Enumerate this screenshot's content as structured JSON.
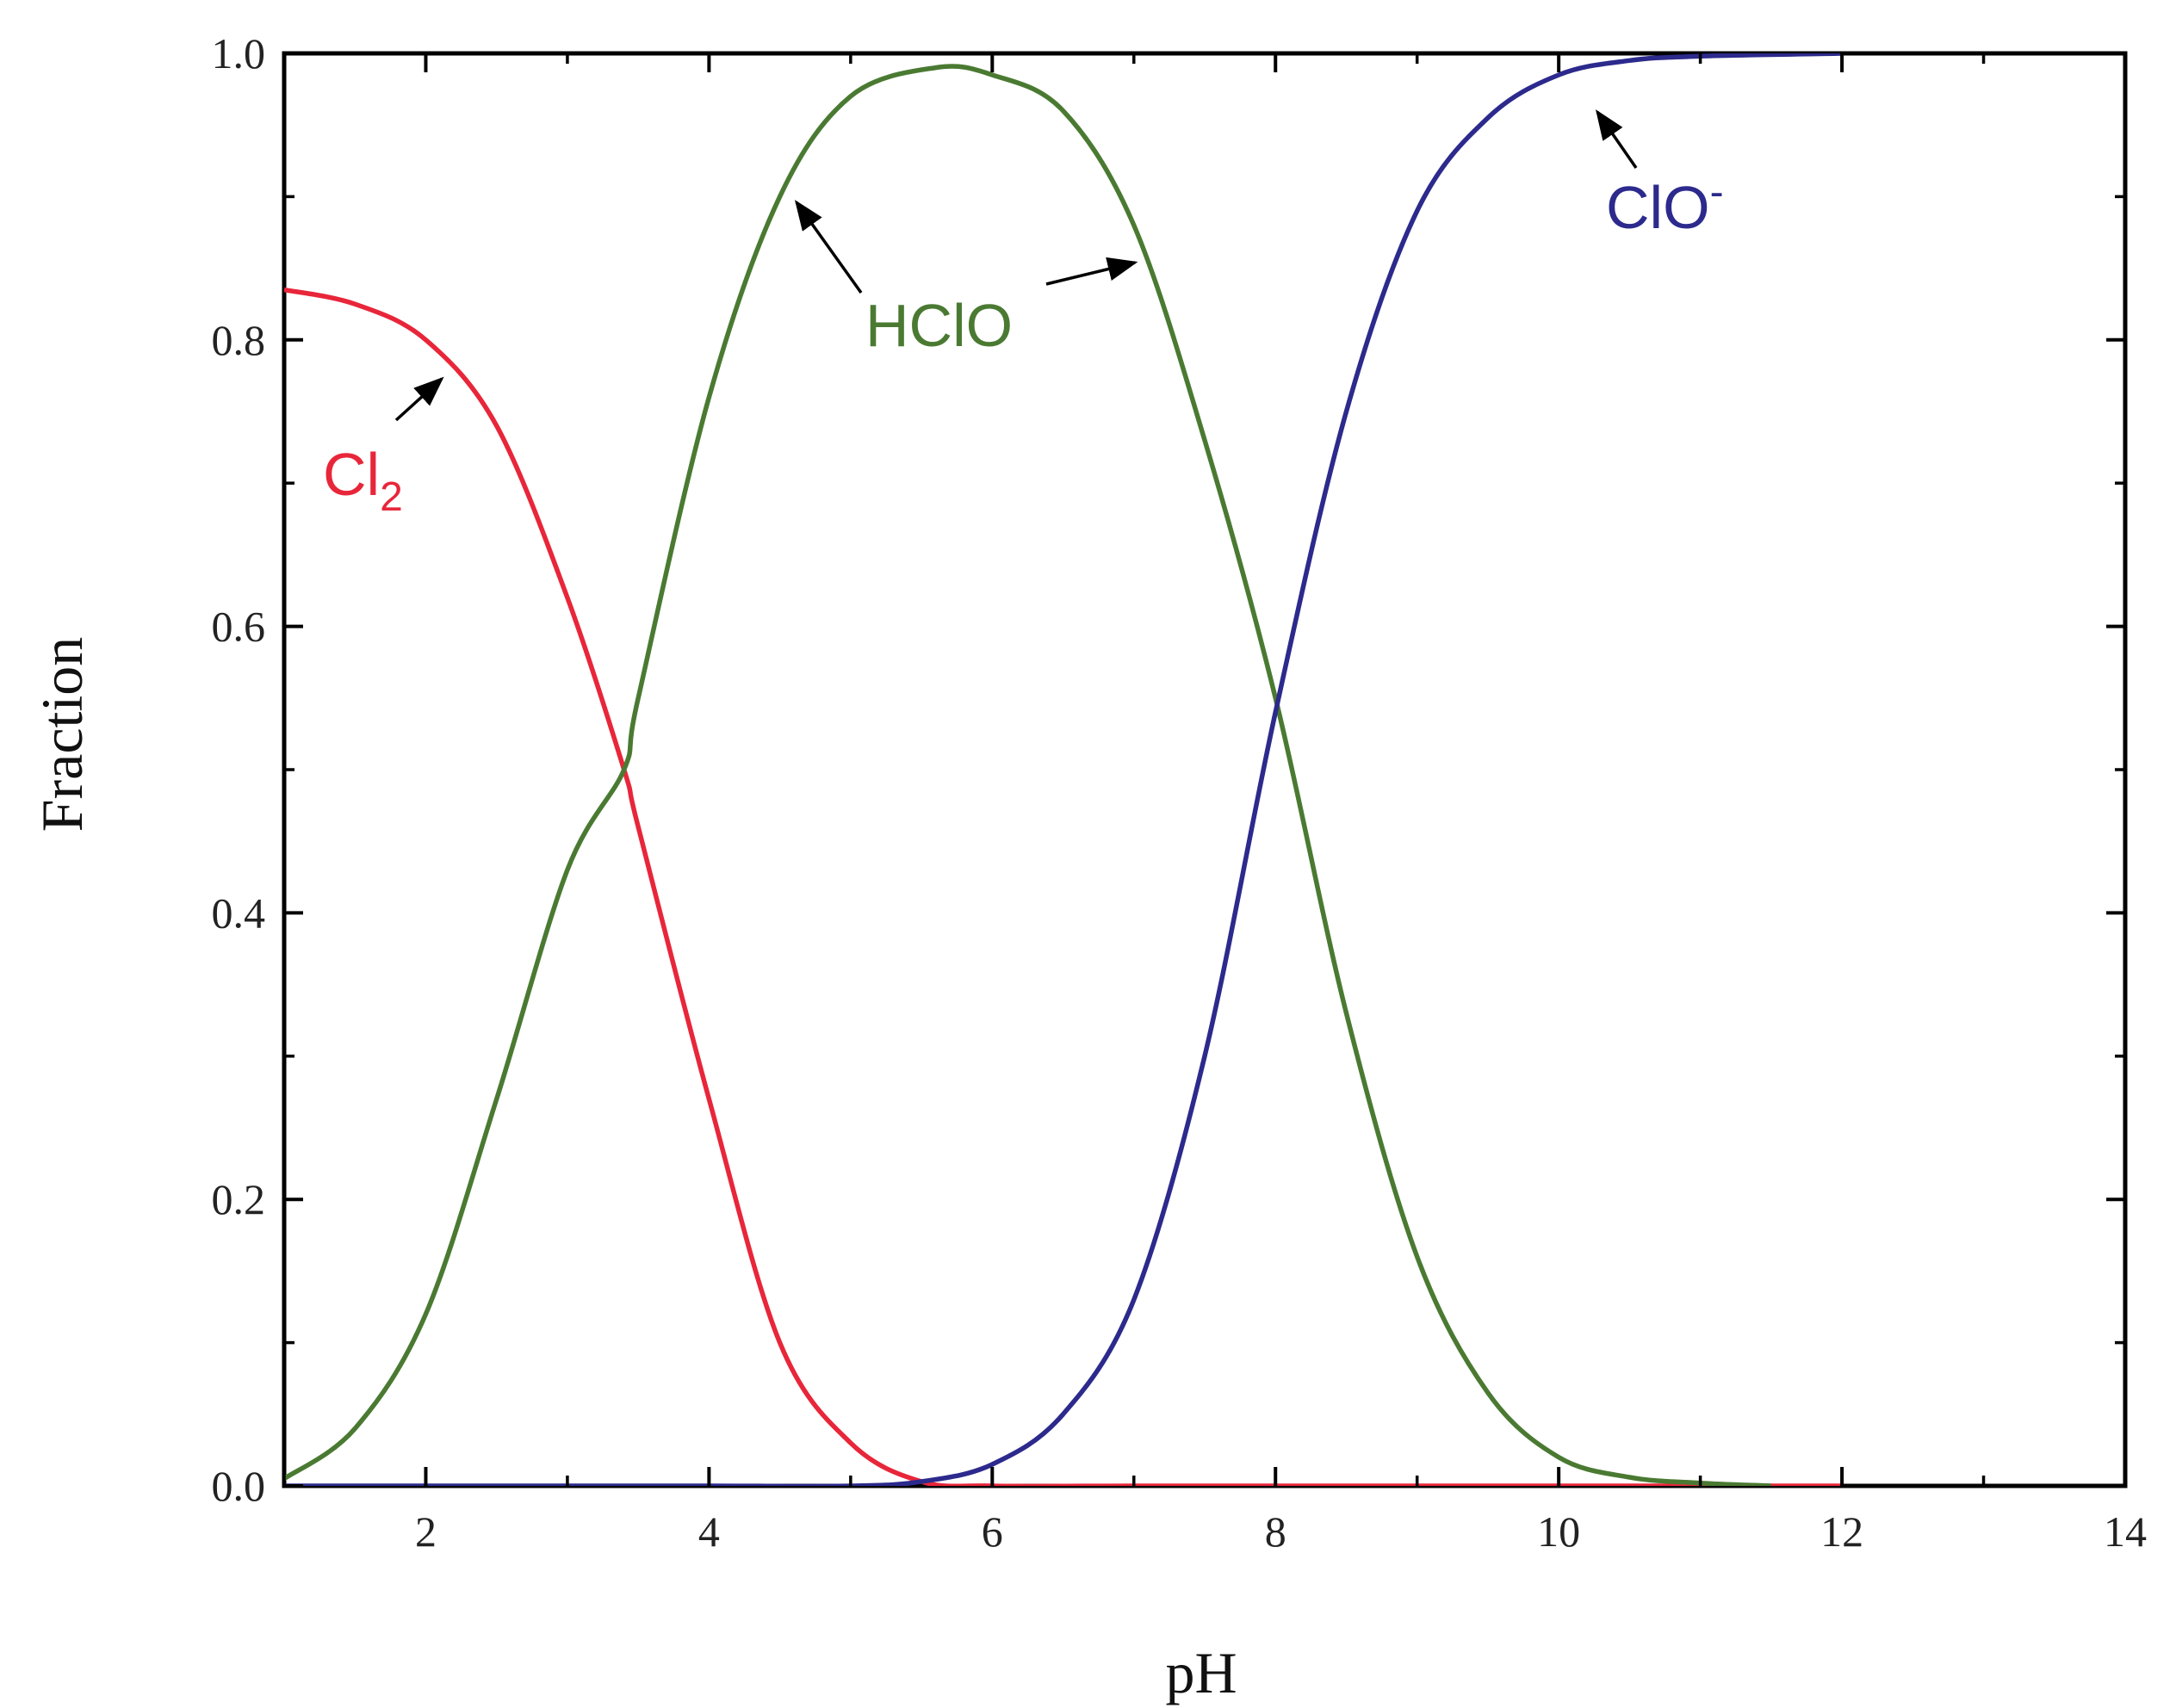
{
  "chart_data": {
    "type": "line",
    "title": "",
    "xlabel": "pH",
    "ylabel": "Fraction",
    "xlim": [
      1,
      14
    ],
    "ylim": [
      0,
      1.0
    ],
    "grid": false,
    "legend": "none",
    "x_ticks": [
      2,
      4,
      6,
      8,
      10,
      12,
      14
    ],
    "x_tick_labels": [
      "2",
      "4",
      "6",
      "8",
      "10",
      "12",
      "14"
    ],
    "y_ticks": [
      0.0,
      0.2,
      0.4,
      0.6,
      0.8,
      1.0
    ],
    "y_tick_labels": [
      "0.0",
      "0.2",
      "0.4",
      "0.6",
      "0.8",
      "1.0"
    ],
    "x_minor_step": 1,
    "y_minor_step": 0.1,
    "series": [
      {
        "name": "Cl2",
        "color": "#e8263a",
        "x": [
          1.0,
          1.5,
          2.0,
          2.5,
          3.0,
          3.4,
          3.5,
          4.0,
          4.5,
          5.0,
          5.5,
          6.0,
          7.0,
          8.0,
          9.0,
          10.0,
          11.0,
          12.0
        ],
        "y": [
          0.835,
          0.825,
          0.8,
          0.74,
          0.62,
          0.5,
          0.46,
          0.27,
          0.1,
          0.03,
          0.003,
          0.0,
          0.0,
          0.0,
          0.0,
          0.0,
          0.0,
          0.0
        ]
      },
      {
        "name": "HClO",
        "color": "#4a7a32",
        "x": [
          1.0,
          1.5,
          2.0,
          2.5,
          3.0,
          3.4,
          3.5,
          4.0,
          4.5,
          5.0,
          5.6,
          6.0,
          6.5,
          7.0,
          7.5,
          8.0,
          8.5,
          9.0,
          9.5,
          10.0,
          10.5,
          11.0,
          11.5
        ],
        "y": [
          0.005,
          0.04,
          0.12,
          0.27,
          0.43,
          0.5,
          0.55,
          0.76,
          0.9,
          0.97,
          0.99,
          0.985,
          0.96,
          0.88,
          0.73,
          0.55,
          0.33,
          0.16,
          0.065,
          0.02,
          0.006,
          0.002,
          0.0
        ]
      },
      {
        "name": "ClO-",
        "color": "#2c2a8c",
        "x": [
          1.0,
          2.0,
          3.0,
          4.0,
          5.0,
          5.5,
          6.0,
          6.5,
          7.0,
          7.5,
          8.0,
          8.5,
          9.0,
          9.5,
          10.0,
          10.5,
          11.0,
          12.0
        ],
        "y": [
          0.0,
          0.0,
          0.0,
          0.0,
          0.0,
          0.003,
          0.015,
          0.05,
          0.13,
          0.3,
          0.54,
          0.75,
          0.89,
          0.955,
          0.985,
          0.995,
          0.998,
          1.0
        ]
      }
    ],
    "annotations": [
      {
        "id": "cl2",
        "label": "Cl",
        "sub": "2",
        "color": "#e8263a"
      },
      {
        "id": "hclo",
        "label": "HClO",
        "sub": "",
        "color": "#4a7a32"
      },
      {
        "id": "clo",
        "label": "ClO",
        "sup": "-",
        "color": "#2c2a8c"
      }
    ]
  }
}
